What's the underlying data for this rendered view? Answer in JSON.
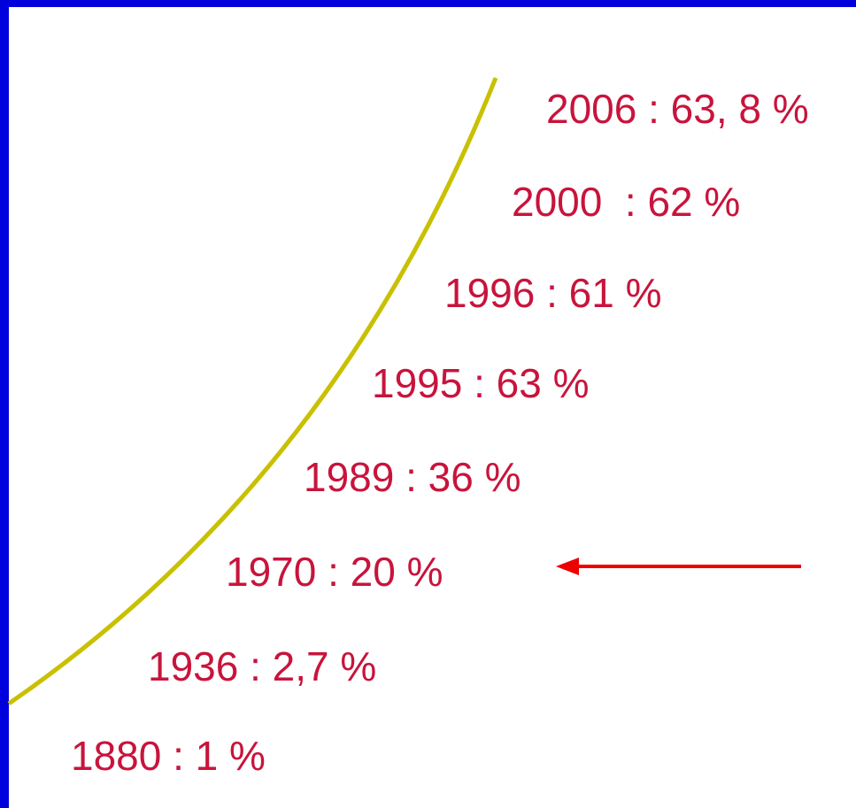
{
  "labels": [
    "2006 : 63, 8 %",
    "2000  : 62 %",
    "1996 : 61 %",
    "1995 : 63 %",
    "1989 : 36 %",
    "1970 : 20 %",
    "1936 : 2,7 %",
    "1880 : 1 %"
  ]
}
